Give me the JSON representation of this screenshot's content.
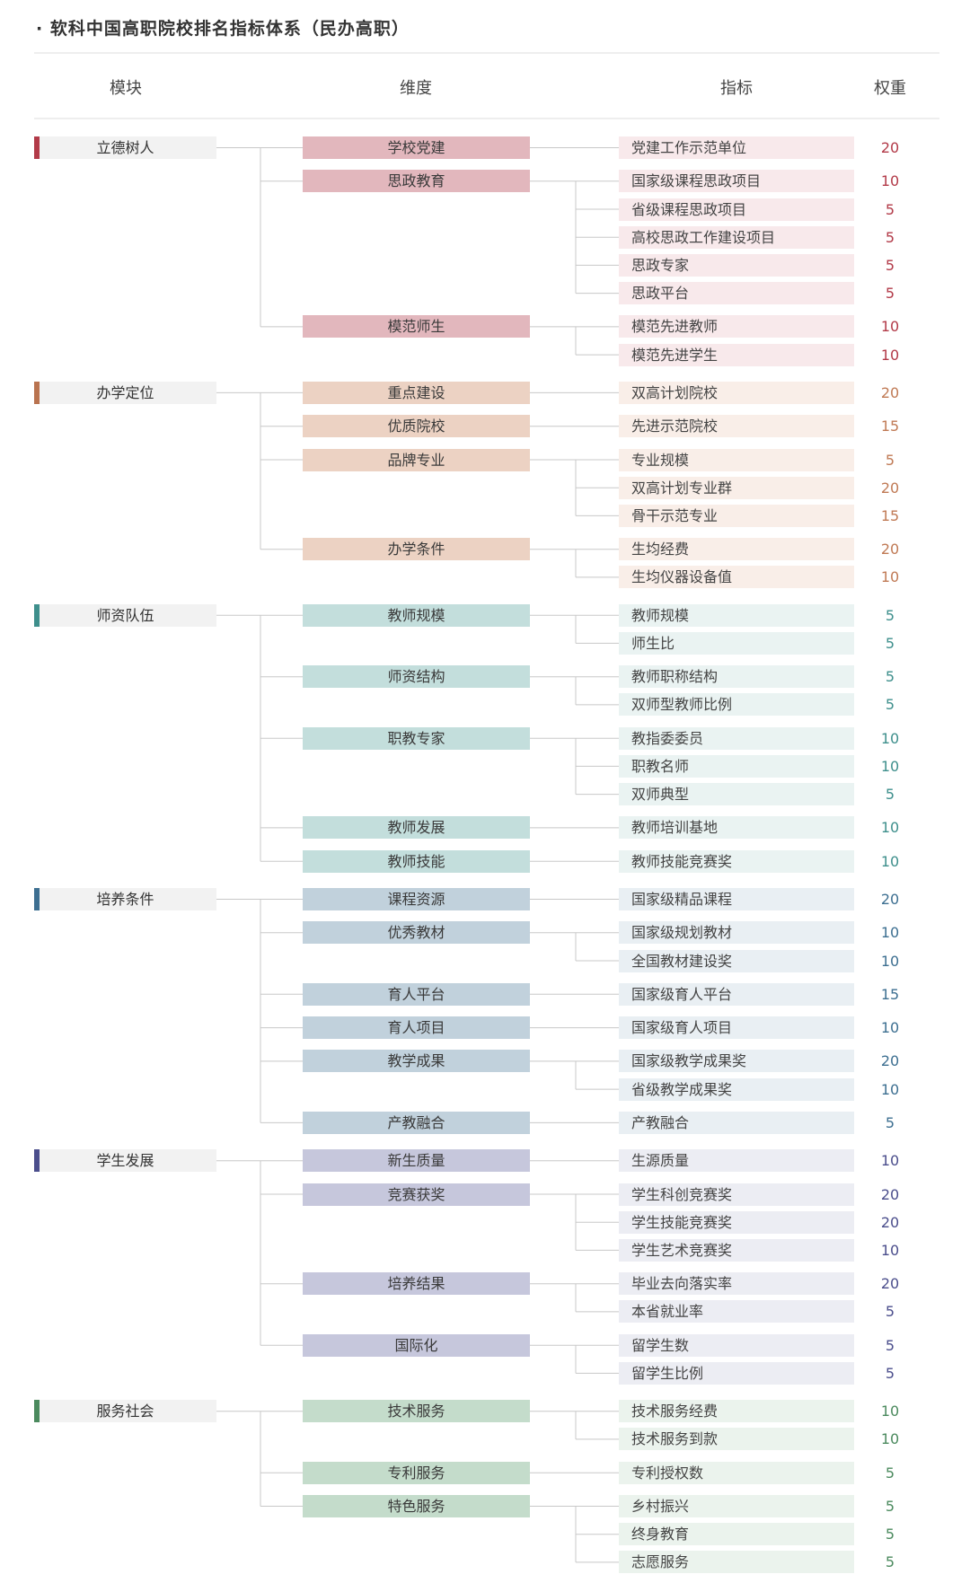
{
  "title": "· 软科中国高职院校排名指标体系（民办高职）",
  "headers": {
    "module": "模块",
    "dimension": "维度",
    "indicator": "指标",
    "weight": "权重"
  },
  "modules": [
    {
      "name": "立德树人",
      "bar_color": "#b23a48",
      "dim_color": "#e2b7bd",
      "ind_color": "#f8e9eb",
      "weight_color": "#b23a48",
      "dimensions": [
        {
          "name": "学校党建",
          "indicators": [
            {
              "name": "党建工作示范单位",
              "weight": "20"
            }
          ]
        },
        {
          "name": "思政教育",
          "indicators": [
            {
              "name": "国家级课程思政项目",
              "weight": "10"
            },
            {
              "name": "省级课程思政项目",
              "weight": "5"
            },
            {
              "name": "高校思政工作建设项目",
              "weight": "5"
            },
            {
              "name": "思政专家",
              "weight": "5"
            },
            {
              "name": "思政平台",
              "weight": "5"
            }
          ]
        },
        {
          "name": "模范师生",
          "indicators": [
            {
              "name": "模范先进教师",
              "weight": "10"
            },
            {
              "name": "模范先进学生",
              "weight": "10"
            }
          ]
        }
      ]
    },
    {
      "name": "办学定位",
      "bar_color": "#b9734f",
      "dim_color": "#ecd2c3",
      "ind_color": "#f9eee8",
      "weight_color": "#c07a55",
      "dimensions": [
        {
          "name": "重点建设",
          "indicators": [
            {
              "name": "双高计划院校",
              "weight": "20"
            }
          ]
        },
        {
          "name": "优质院校",
          "indicators": [
            {
              "name": "先进示范院校",
              "weight": "15"
            }
          ]
        },
        {
          "name": "品牌专业",
          "indicators": [
            {
              "name": "专业规模",
              "weight": "5"
            },
            {
              "name": "双高计划专业群",
              "weight": "20"
            },
            {
              "name": "骨干示范专业",
              "weight": "15"
            }
          ]
        },
        {
          "name": "办学条件",
          "indicators": [
            {
              "name": "生均经费",
              "weight": "20"
            },
            {
              "name": "生均仪器设备值",
              "weight": "10"
            }
          ]
        }
      ]
    },
    {
      "name": "师资队伍",
      "bar_color": "#3e8f8c",
      "dim_color": "#c3dedc",
      "ind_color": "#eaf3f2",
      "weight_color": "#3e8f8c",
      "dimensions": [
        {
          "name": "教师规模",
          "indicators": [
            {
              "name": "教师规模",
              "weight": "5"
            },
            {
              "name": "师生比",
              "weight": "5"
            }
          ]
        },
        {
          "name": "师资结构",
          "indicators": [
            {
              "name": "教师职称结构",
              "weight": "5"
            },
            {
              "name": "双师型教师比例",
              "weight": "5"
            }
          ]
        },
        {
          "name": "职教专家",
          "indicators": [
            {
              "name": "教指委委员",
              "weight": "10"
            },
            {
              "name": "职教名师",
              "weight": "10"
            },
            {
              "name": "双师典型",
              "weight": "5"
            }
          ]
        },
        {
          "name": "教师发展",
          "indicators": [
            {
              "name": "教师培训基地",
              "weight": "10"
            }
          ]
        },
        {
          "name": "教师技能",
          "indicators": [
            {
              "name": "教师技能竞赛奖",
              "weight": "10"
            }
          ]
        }
      ]
    },
    {
      "name": "培养条件",
      "bar_color": "#3d6f91",
      "dim_color": "#c1d1dc",
      "ind_color": "#e9eff3",
      "weight_color": "#3d6f91",
      "dimensions": [
        {
          "name": "课程资源",
          "indicators": [
            {
              "name": "国家级精品课程",
              "weight": "20"
            }
          ]
        },
        {
          "name": "优秀教材",
          "indicators": [
            {
              "name": "国家级规划教材",
              "weight": "10"
            },
            {
              "name": "全国教材建设奖",
              "weight": "10"
            }
          ]
        },
        {
          "name": "育人平台",
          "indicators": [
            {
              "name": "国家级育人平台",
              "weight": "15"
            }
          ]
        },
        {
          "name": "育人项目",
          "indicators": [
            {
              "name": "国家级育人项目",
              "weight": "10"
            }
          ]
        },
        {
          "name": "教学成果",
          "indicators": [
            {
              "name": "国家级教学成果奖",
              "weight": "20"
            },
            {
              "name": "省级教学成果奖",
              "weight": "10"
            }
          ]
        },
        {
          "name": "产教融合",
          "indicators": [
            {
              "name": "产教融合",
              "weight": "5"
            }
          ]
        }
      ]
    },
    {
      "name": "学生发展",
      "bar_color": "#4b4e8c",
      "dim_color": "#c6c7dc",
      "ind_color": "#ecedf3",
      "weight_color": "#4b4e8c",
      "dimensions": [
        {
          "name": "新生质量",
          "indicators": [
            {
              "name": "生源质量",
              "weight": "10"
            }
          ]
        },
        {
          "name": "竞赛获奖",
          "indicators": [
            {
              "name": "学生科创竞赛奖",
              "weight": "20"
            },
            {
              "name": "学生技能竞赛奖",
              "weight": "20"
            },
            {
              "name": "学生艺术竞赛奖",
              "weight": "10"
            }
          ]
        },
        {
          "name": "培养结果",
          "indicators": [
            {
              "name": "毕业去向落实率",
              "weight": "20"
            },
            {
              "name": "本省就业率",
              "weight": "5"
            }
          ]
        },
        {
          "name": "国际化",
          "indicators": [
            {
              "name": "留学生数",
              "weight": "5"
            },
            {
              "name": "留学生比例",
              "weight": "5"
            }
          ]
        }
      ]
    },
    {
      "name": "服务社会",
      "bar_color": "#4b8a5e",
      "dim_color": "#c4dccb",
      "ind_color": "#ebf3ed",
      "weight_color": "#4b8a5e",
      "dimensions": [
        {
          "name": "技术服务",
          "indicators": [
            {
              "name": "技术服务经费",
              "weight": "10"
            },
            {
              "name": "技术服务到款",
              "weight": "10"
            }
          ]
        },
        {
          "name": "专利服务",
          "indicators": [
            {
              "name": "专利授权数",
              "weight": "5"
            }
          ]
        },
        {
          "name": "特色服务",
          "indicators": [
            {
              "name": "乡村振兴",
              "weight": "5"
            },
            {
              "name": "终身教育",
              "weight": "5"
            },
            {
              "name": "志愿服务",
              "weight": "5"
            }
          ]
        }
      ]
    }
  ]
}
